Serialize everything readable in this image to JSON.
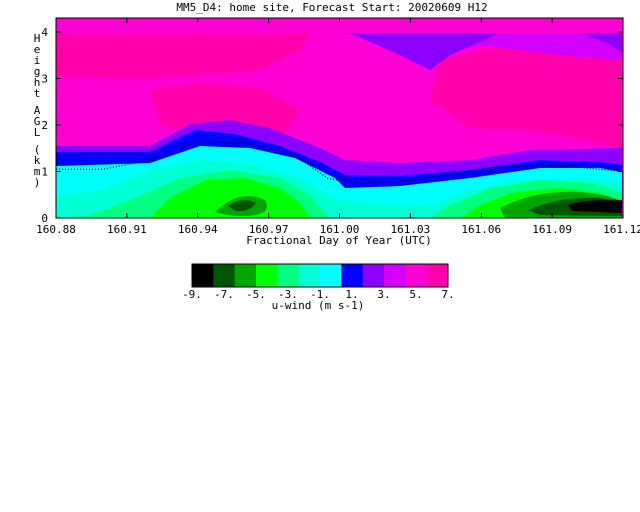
{
  "chart_data": {
    "type": "heatmap",
    "title": "MM5_D4: home site,  Forecast Start: 20020609 H12",
    "xlabel": "Fractional Day of Year (UTC)",
    "ylabel": "Height AGL (km)",
    "x_ticks": [
      "160.88",
      "160.91",
      "160.94",
      "160.97",
      "161.00",
      "161.03",
      "161.06",
      "161.09",
      "161.12"
    ],
    "y_ticks": [
      "0",
      "1",
      "2",
      "3",
      "4"
    ],
    "xlim": [
      160.88,
      161.12
    ],
    "ylim": [
      0,
      4.3
    ],
    "colorbar": {
      "label": "u-wind (m s-1)",
      "ticks": [
        "-9.",
        "-7.",
        "-5.",
        "-3.",
        "-1.",
        "1.",
        "3.",
        "5.",
        "7."
      ],
      "levels": [
        -9,
        -8,
        -7,
        -6,
        -5,
        -4,
        -3,
        -2,
        -1,
        0,
        1,
        2,
        3,
        4,
        5,
        6,
        7
      ],
      "colors": [
        "#000000",
        "#005500",
        "#00a500",
        "#00ff00",
        "#00ff80",
        "#00ffd4",
        "#00ffff",
        "#0000ff",
        "#8b00ff",
        "#d400ff",
        "#ff00d4",
        "#ff00aa"
      ]
    },
    "zero_contour_km": [
      [
        160.88,
        1.05
      ],
      [
        160.9,
        1.05
      ],
      [
        160.92,
        1.25
      ],
      [
        160.93,
        1.45
      ],
      [
        160.94,
        1.65
      ],
      [
        160.96,
        1.62
      ],
      [
        160.98,
        1.4
      ],
      [
        160.995,
        0.85
      ],
      [
        161.01,
        0.75
      ],
      [
        161.03,
        0.8
      ],
      [
        161.06,
        1.05
      ],
      [
        161.08,
        1.12
      ],
      [
        161.1,
        1.1
      ],
      [
        161.12,
        1.0
      ]
    ]
  }
}
